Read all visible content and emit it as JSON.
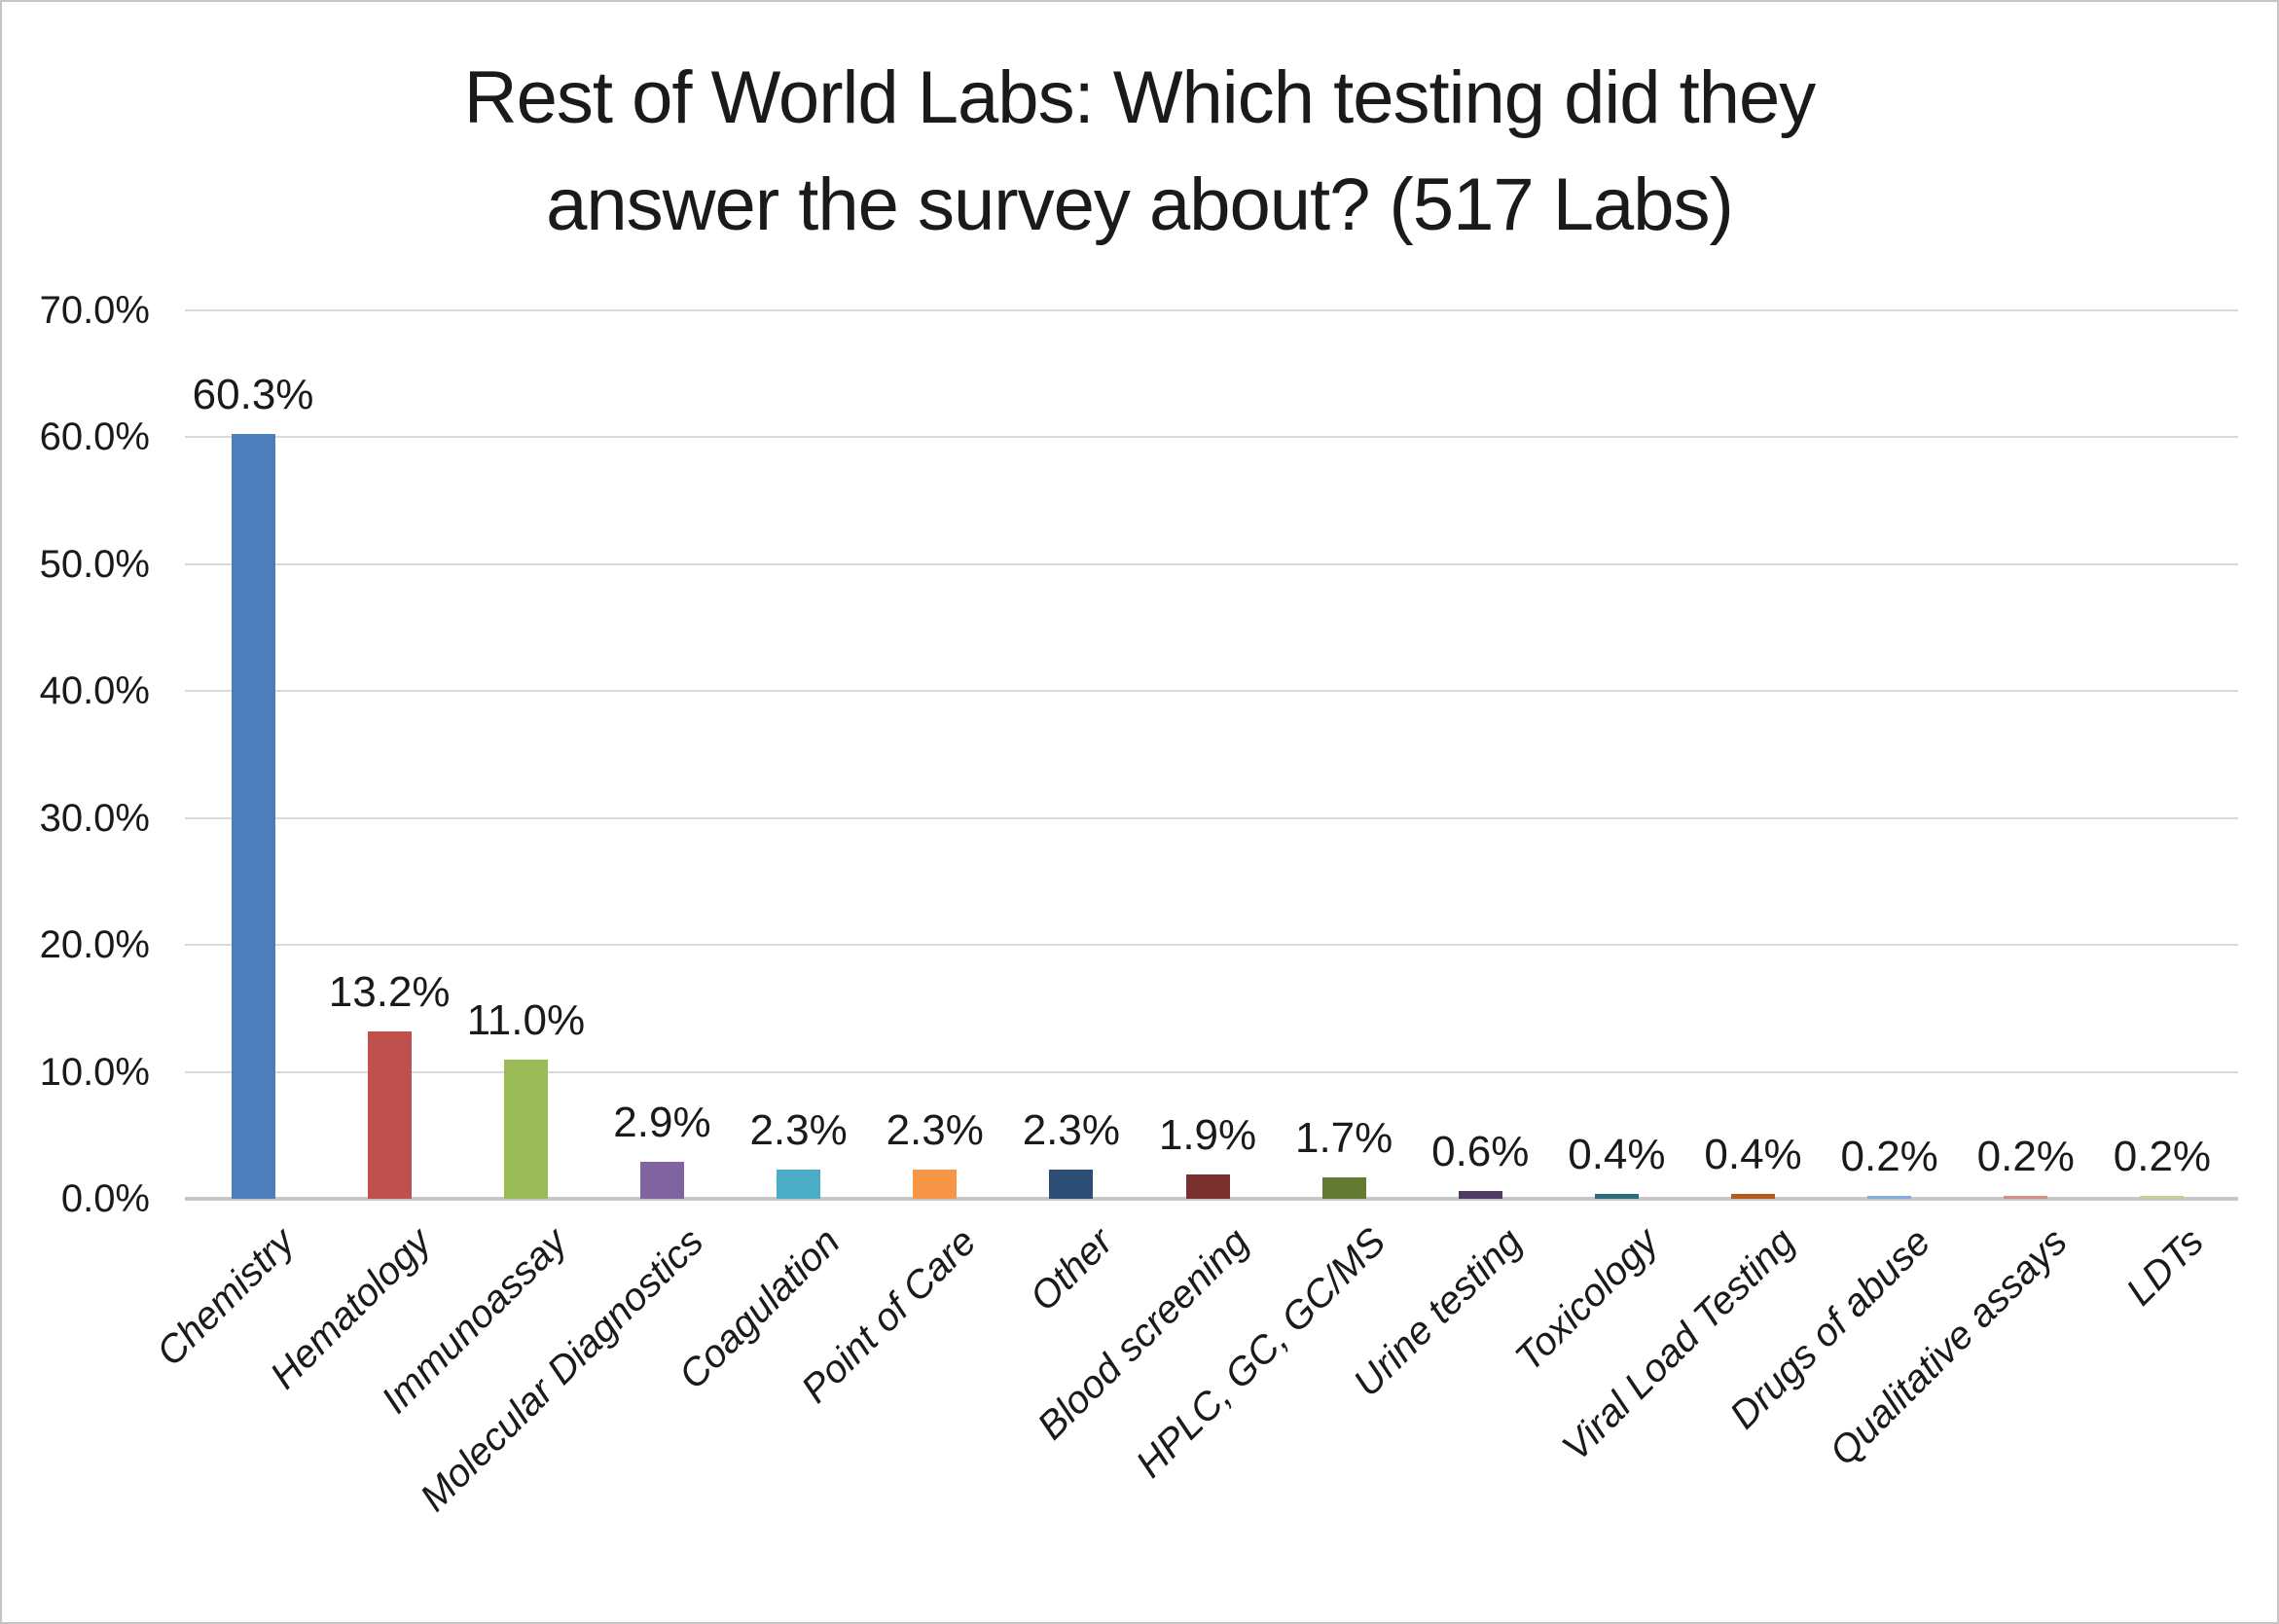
{
  "title": {
    "line1": "Rest of World Labs: Which testing did they",
    "line2": "answer the survey about? (517 Labs)"
  },
  "chart_data": {
    "type": "bar",
    "title": "Rest of World Labs: Which testing did they answer the survey about? (517 Labs)",
    "categories": [
      "Chemistry",
      "Hematology",
      "Immunoassay",
      "Molecular Diagnostics",
      "Coagulation",
      "Point of Care",
      "Other",
      "Blood screening",
      "HPLC, GC, GC/MS",
      "Urine testing",
      "Toxicology",
      "Viral Load Testing",
      "Drugs of abuse",
      "Qualitative assays",
      "LDTs"
    ],
    "values": [
      60.3,
      13.2,
      11.0,
      2.9,
      2.3,
      2.3,
      2.3,
      1.9,
      1.7,
      0.6,
      0.4,
      0.4,
      0.2,
      0.2,
      0.2
    ],
    "data_labels": [
      "60.3%",
      "13.2%",
      "11.0%",
      "2.9%",
      "2.3%",
      "2.3%",
      "2.3%",
      "1.9%",
      "1.7%",
      "0.6%",
      "0.4%",
      "0.4%",
      "0.2%",
      "0.2%",
      "0.2%"
    ],
    "bar_colors": [
      "#4C7EBC",
      "#C0504D",
      "#9BBB59",
      "#8064A2",
      "#4BACC6",
      "#F79646",
      "#2C4D75",
      "#7A302E",
      "#637A33",
      "#4D3B63",
      "#2A6B7C",
      "#B45A1D",
      "#84ACDB",
      "#D68D87",
      "#C3CD96"
    ],
    "y_ticks": [
      "70.0%",
      "60.0%",
      "50.0%",
      "40.0%",
      "30.0%",
      "20.0%",
      "10.0%",
      "0.0%"
    ],
    "ylim": [
      0,
      70
    ],
    "xlabel": "",
    "ylabel": "",
    "grid": true,
    "legend": "none"
  },
  "colors": {
    "background": "#FFFFFF",
    "border": "#C5C5C5",
    "gridline": "#D9D9D9",
    "axis_line": "#C8C8C8",
    "text": "#1A1A1A"
  }
}
